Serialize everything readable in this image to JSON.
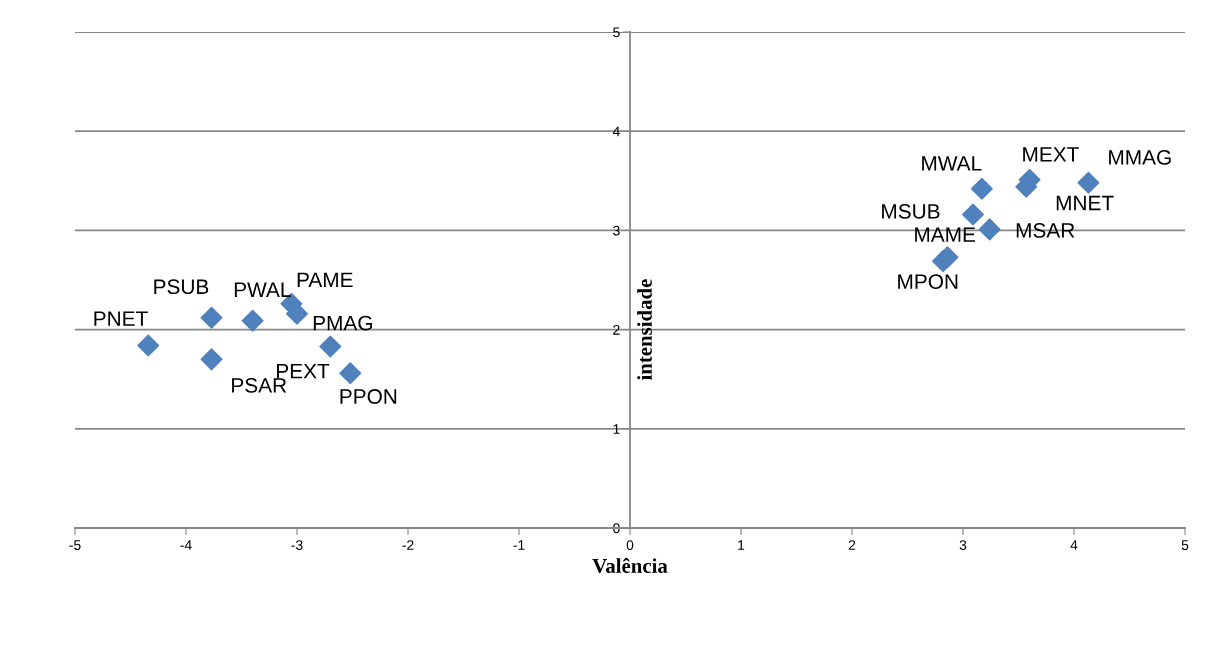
{
  "chart_data": {
    "type": "scatter",
    "xlabel": "Valência",
    "ylabel": "intensidade",
    "x": [
      -4.34,
      -3.77,
      -3.4,
      -3.05,
      -3.0,
      -3.77,
      -2.7,
      -2.52,
      3.17,
      3.6,
      3.57,
      4.13,
      3.09,
      3.24,
      2.86,
      2.82
    ],
    "series": [
      {
        "color": "#4f81bd",
        "values": [
          1.84,
          2.12,
          2.09,
          2.26,
          2.16,
          1.7,
          1.83,
          1.56,
          3.42,
          3.51,
          3.44,
          3.48,
          3.16,
          3.01,
          2.73,
          2.69
        ]
      }
    ],
    "annotations": [
      {
        "text": "PNET",
        "x": -4.34,
        "y": 1.84
      },
      {
        "text": "PSUB",
        "x": -3.77,
        "y": 2.12
      },
      {
        "text": "PWAL",
        "x": -3.4,
        "y": 2.09
      },
      {
        "text": "PAME",
        "x": -3.05,
        "y": 2.26
      },
      {
        "text": "PMAG",
        "x": -3.0,
        "y": 2.16
      },
      {
        "text": "PSAR",
        "x": -3.77,
        "y": 1.7
      },
      {
        "text": "PEXT",
        "x": -2.7,
        "y": 1.83
      },
      {
        "text": "PPON",
        "x": -2.52,
        "y": 1.56
      },
      {
        "text": "MWAL",
        "x": 3.17,
        "y": 3.42
      },
      {
        "text": "MEXT",
        "x": 3.6,
        "y": 3.51
      },
      {
        "text": "MNET",
        "x": 3.57,
        "y": 3.44
      },
      {
        "text": "MMAG",
        "x": 4.13,
        "y": 3.48
      },
      {
        "text": "MSUB",
        "x": 3.09,
        "y": 3.16
      },
      {
        "text": "MSAR",
        "x": 3.24,
        "y": 3.01
      },
      {
        "text": "MAME",
        "x": 2.86,
        "y": 2.73
      },
      {
        "text": "MPON",
        "x": 2.82,
        "y": 2.69
      }
    ],
    "xlim": [
      -5,
      5
    ],
    "xticks": [
      -5,
      -4,
      -3,
      -2,
      -1,
      0,
      1,
      2,
      3,
      4,
      5
    ],
    "ylim": [
      0,
      5
    ],
    "yticks": [
      0,
      1,
      2,
      3,
      4,
      5
    ],
    "grid": "y",
    "marker": "diamond",
    "legend": false
  }
}
